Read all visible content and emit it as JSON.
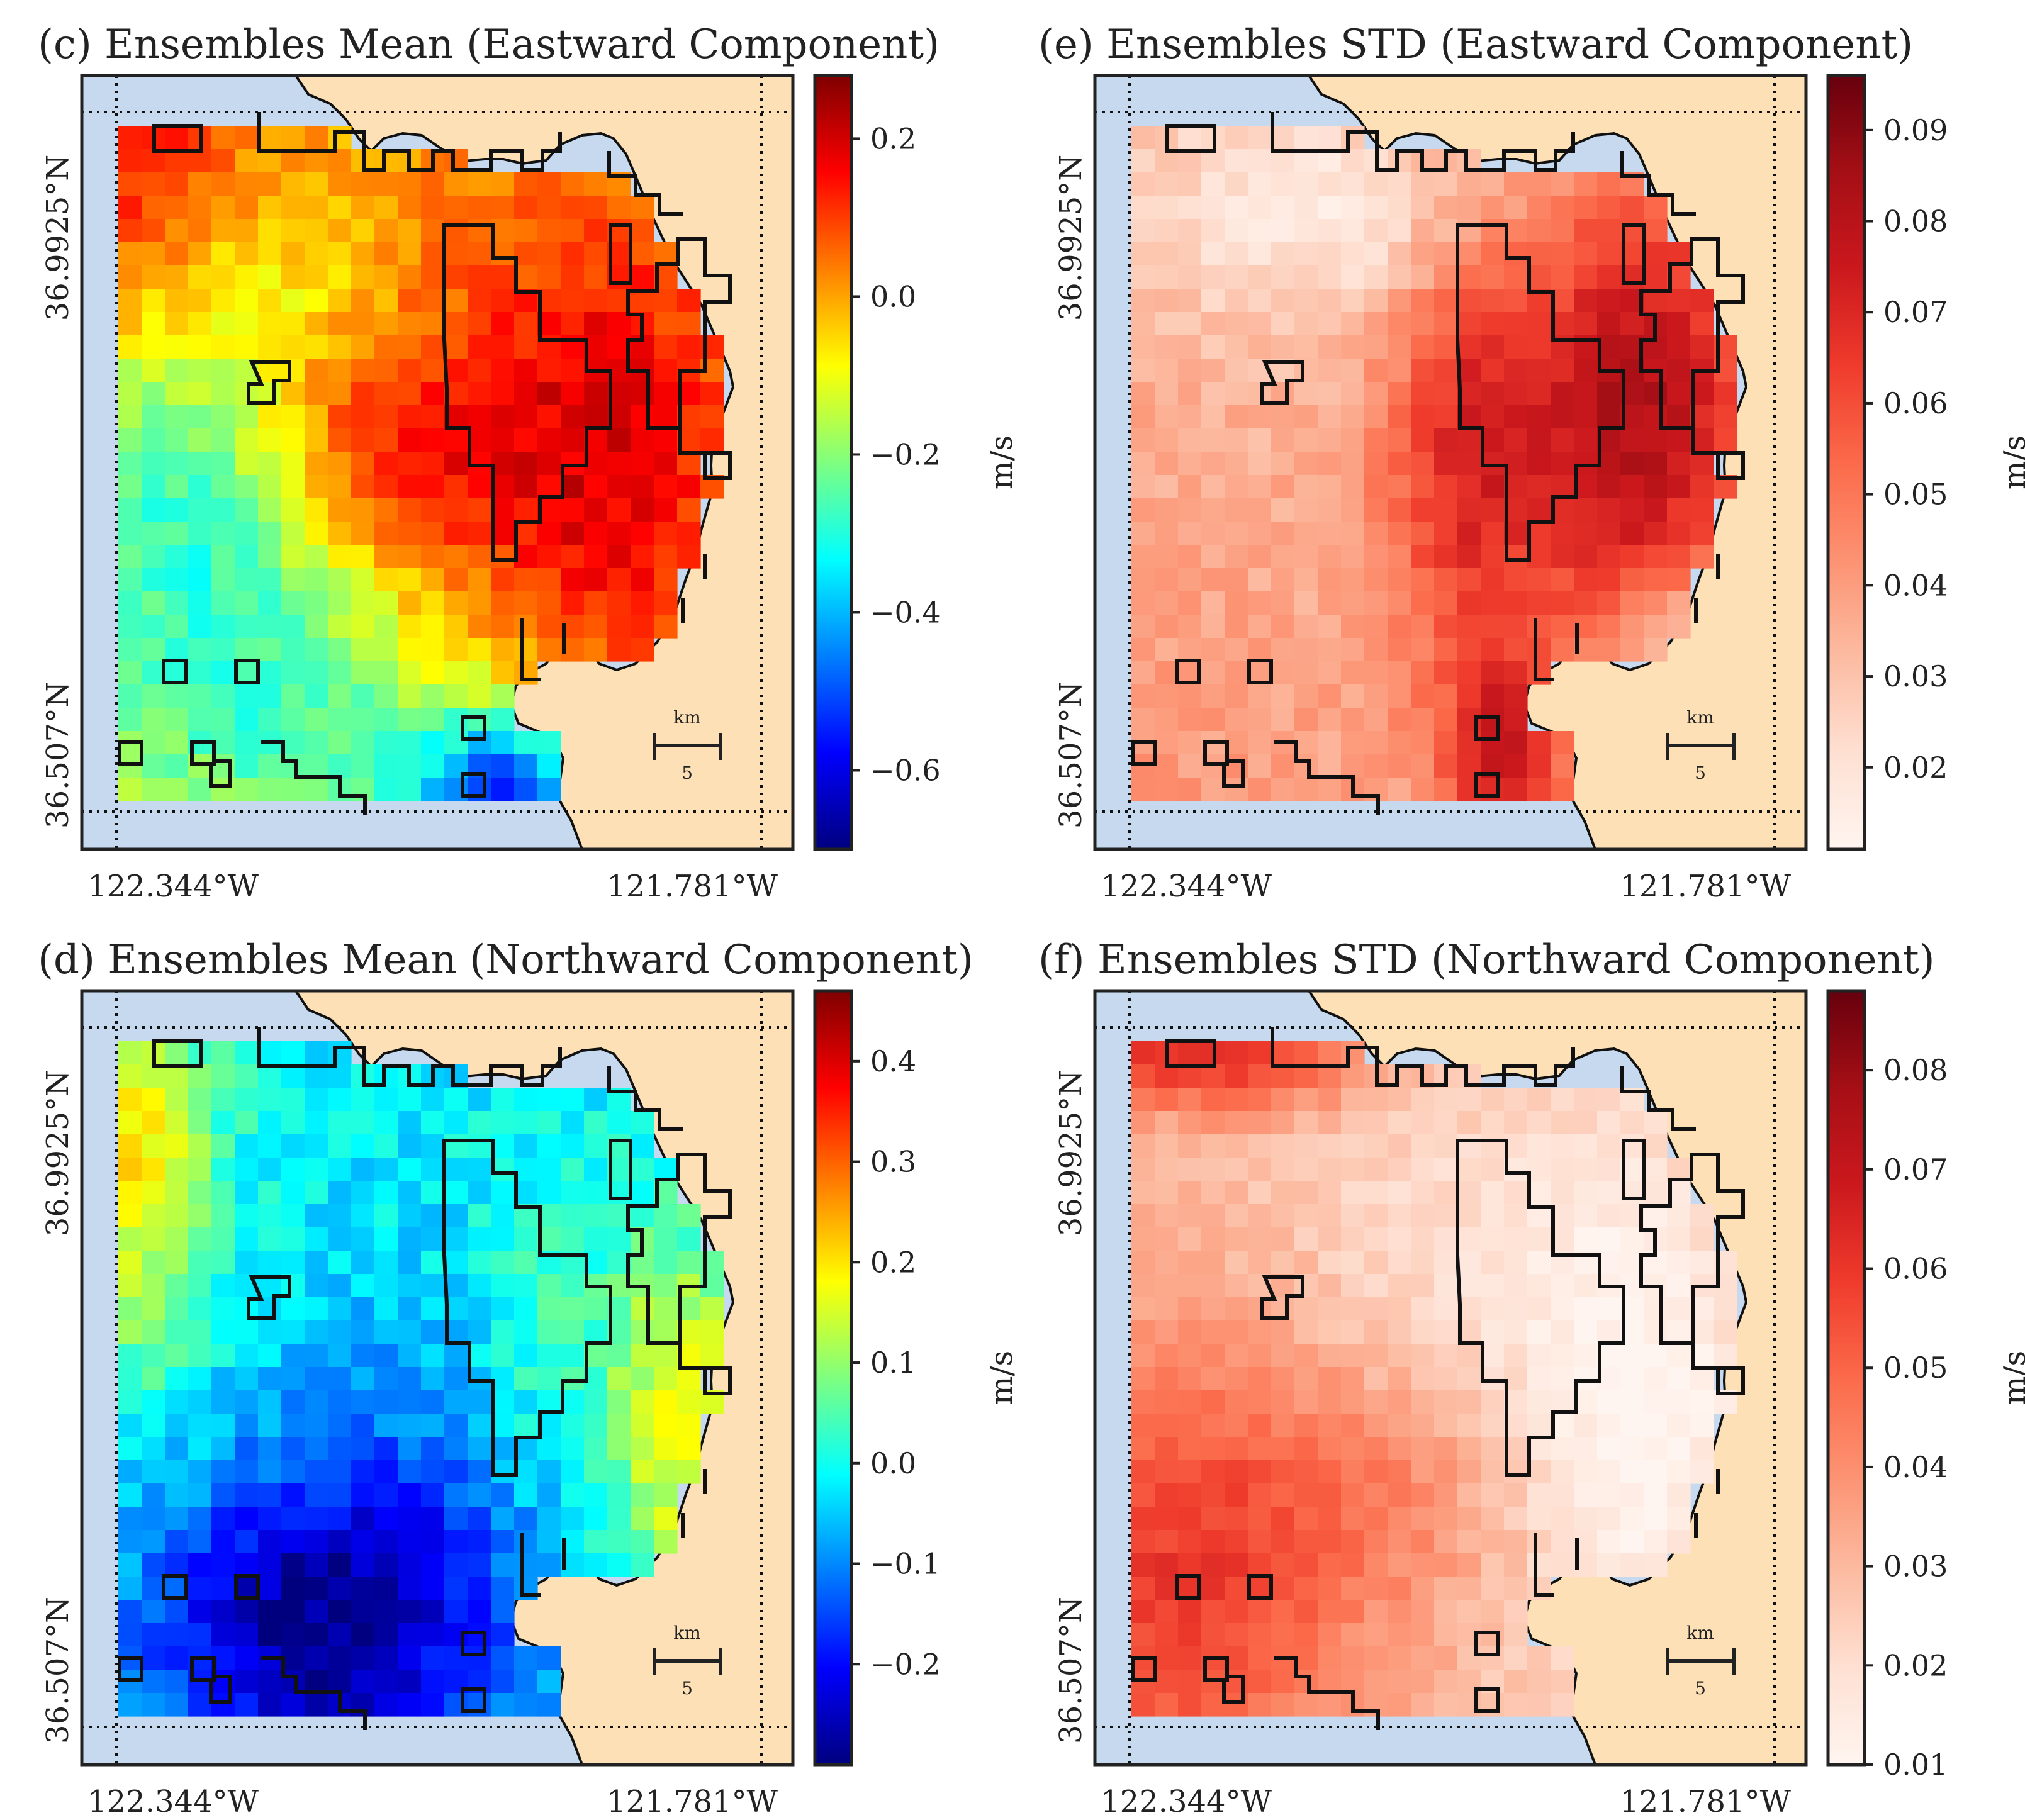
{
  "figure": {
    "colormaps": {
      "jet": [
        "#00007f",
        "#0000ff",
        "#007fff",
        "#00ffff",
        "#7fff7f",
        "#ffff00",
        "#ff7f00",
        "#ff0000",
        "#7f0000"
      ],
      "reds": [
        "#fff5f0",
        "#fee0d2",
        "#fcbba1",
        "#fc9272",
        "#fb6a4a",
        "#ef3b2c",
        "#cb181d",
        "#a50f15",
        "#67000d"
      ]
    },
    "colors": {
      "land": "#fde0b5",
      "ocean": "#c6d9ee",
      "outline": "#111111"
    }
  },
  "chart_data": [
    {
      "type": "heatmap",
      "title": "(c) Ensembles Mean (Eastward Component)",
      "colormap": "jet",
      "value_range": [
        -0.7,
        0.28
      ],
      "field": "east_mean",
      "colorbar": {
        "label": "m/s",
        "ticks": [
          0.2,
          0.0,
          -0.2,
          -0.4,
          -0.6
        ],
        "tick_labels": [
          "0.2",
          "0.0",
          "−0.2",
          "−0.4",
          "−0.6"
        ]
      },
      "xtick_labels": [
        "122.344°W",
        "121.781°W"
      ],
      "ytick_labels": [
        "36.9925°N",
        "36.507°N"
      ],
      "scale_bar": {
        "unit": "km",
        "value": "5"
      }
    },
    {
      "type": "heatmap",
      "title": "(e) Ensembles STD (Eastward Component)",
      "colormap": "reds",
      "value_range": [
        0.011,
        0.096
      ],
      "field": "east_std",
      "colorbar": {
        "label": "m/s",
        "ticks": [
          0.09,
          0.08,
          0.07,
          0.06,
          0.05,
          0.04,
          0.03,
          0.02
        ],
        "tick_labels": [
          "0.09",
          "0.08",
          "0.07",
          "0.06",
          "0.05",
          "0.04",
          "0.03",
          "0.02"
        ]
      },
      "xtick_labels": [
        "122.344°W",
        "121.781°W"
      ],
      "ytick_labels": [
        "36.9925°N",
        "36.507°N"
      ],
      "scale_bar": {
        "unit": "km",
        "value": "5"
      }
    },
    {
      "type": "heatmap",
      "title": "(d) Ensembles Mean (Northward Component)",
      "colormap": "jet",
      "value_range": [
        -0.3,
        0.47
      ],
      "field": "north_mean",
      "colorbar": {
        "label": "m/s",
        "ticks": [
          0.4,
          0.3,
          0.2,
          0.1,
          0.0,
          -0.1,
          -0.2
        ],
        "tick_labels": [
          "0.4",
          "0.3",
          "0.2",
          "0.1",
          "0.0",
          "−0.1",
          "−0.2"
        ]
      },
      "xtick_labels": [
        "122.344°W",
        "121.781°W"
      ],
      "ytick_labels": [
        "36.9925°N",
        "36.507°N"
      ],
      "scale_bar": {
        "unit": "km",
        "value": "5"
      }
    },
    {
      "type": "heatmap",
      "title": "(f) Ensembles STD (Northward Component)",
      "colormap": "reds",
      "value_range": [
        0.01,
        0.088
      ],
      "field": "north_std",
      "colorbar": {
        "label": "m/s",
        "ticks": [
          0.08,
          0.07,
          0.06,
          0.05,
          0.04,
          0.03,
          0.02,
          0.01
        ],
        "tick_labels": [
          "0.08",
          "0.07",
          "0.06",
          "0.05",
          "0.04",
          "0.03",
          "0.02",
          "0.01"
        ]
      },
      "xtick_labels": [
        "122.344°W",
        "121.781°W"
      ],
      "ytick_labels": [
        "36.9925°N",
        "36.507°N"
      ],
      "scale_bar": {
        "unit": "km",
        "value": "5"
      }
    }
  ]
}
